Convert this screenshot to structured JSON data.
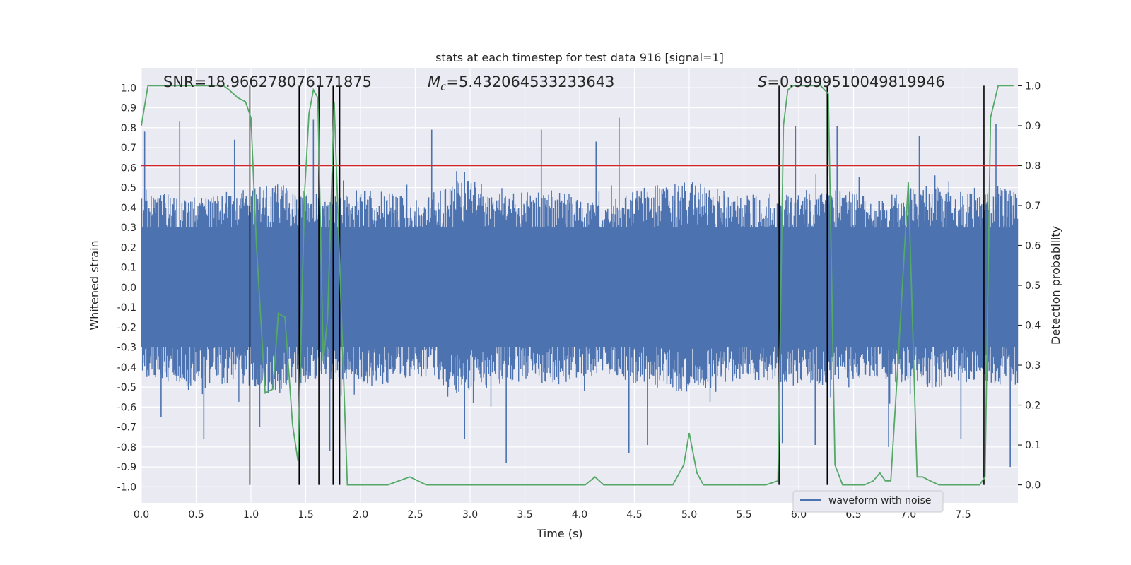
{
  "chart_data": {
    "type": "line",
    "title": "stats at each timestep for test data 916 [signal=1]",
    "xlabel": "Time (s)",
    "ylabel": "Whitened strain",
    "y2label": "Detection probability",
    "xlim": [
      0.0,
      8.0
    ],
    "ylim": [
      -1.08,
      1.1
    ],
    "y2lim": [
      -0.045,
      1.045
    ],
    "xticks": [
      "0.0",
      "0.5",
      "1.0",
      "1.5",
      "2.0",
      "2.5",
      "3.0",
      "3.5",
      "4.0",
      "4.5",
      "5.0",
      "5.5",
      "6.0",
      "6.5",
      "7.0",
      "7.5"
    ],
    "yticks": [
      "1.0",
      "0.9",
      "0.8",
      "0.7",
      "0.6",
      "0.5",
      "0.4",
      "0.3",
      "0.2",
      "0.1",
      "0.0",
      "-0.1",
      "-0.2",
      "-0.3",
      "-0.4",
      "-0.5",
      "-0.6",
      "-0.7",
      "-0.8",
      "-0.9",
      "-1.0"
    ],
    "y2ticks": [
      "1.0",
      "0.9",
      "0.8",
      "0.7",
      "0.6",
      "0.5",
      "0.4",
      "0.3",
      "0.2",
      "0.1",
      "0.0"
    ],
    "threshold": {
      "value": 0.8,
      "axis": "right",
      "color": "#d62728"
    },
    "event_markers_x": [
      0.99,
      1.44,
      1.62,
      1.75,
      1.81,
      5.82,
      6.26,
      7.69
    ],
    "annotations": {
      "snr": "SNR=18.966278076171875",
      "mc_symbol": "M",
      "mc_sub": "c",
      "mc_value": "=5.432064533233643",
      "s_symbol": "S",
      "s_value": "=0.9999510049819946"
    },
    "legend": [
      {
        "label": "waveform with noise",
        "color": "#4c72b0"
      }
    ],
    "series": [
      {
        "name": "waveform with noise",
        "axis": "left",
        "color": "#4c72b0",
        "upper_envelope": [
          0.5,
          0.45,
          0.48,
          0.52,
          0.46,
          0.5,
          0.44,
          0.55,
          0.47,
          0.49,
          0.43,
          0.51,
          0.53,
          0.46,
          0.48,
          0.5,
          0.45,
          0.52,
          0.47,
          0.5
        ],
        "lower_envelope": [
          -0.45,
          -0.5,
          -0.48,
          -0.52,
          -0.46,
          -0.5,
          -0.44,
          -0.55,
          -0.47,
          -0.49,
          -0.43,
          -0.51,
          -0.53,
          -0.46,
          -0.48,
          -0.5,
          -0.45,
          -0.52,
          -0.47,
          -0.5
        ],
        "peaks": [
          {
            "x": 0.03,
            "y": 0.78
          },
          {
            "x": 0.18,
            "y": -0.65
          },
          {
            "x": 0.35,
            "y": 0.83
          },
          {
            "x": 0.57,
            "y": -0.76
          },
          {
            "x": 0.85,
            "y": 0.74
          },
          {
            "x": 1.08,
            "y": -0.7
          },
          {
            "x": 1.57,
            "y": 0.84
          },
          {
            "x": 1.72,
            "y": -0.82
          },
          {
            "x": 2.65,
            "y": 0.79
          },
          {
            "x": 2.95,
            "y": -0.76
          },
          {
            "x": 3.33,
            "y": -0.88
          },
          {
            "x": 3.65,
            "y": 0.79
          },
          {
            "x": 4.15,
            "y": 0.73
          },
          {
            "x": 4.36,
            "y": 0.85
          },
          {
            "x": 4.45,
            "y": -0.83
          },
          {
            "x": 4.62,
            "y": -0.79
          },
          {
            "x": 5.85,
            "y": -0.78
          },
          {
            "x": 5.97,
            "y": 0.81
          },
          {
            "x": 6.15,
            "y": -0.79
          },
          {
            "x": 6.35,
            "y": 0.81
          },
          {
            "x": 6.82,
            "y": -0.8
          },
          {
            "x": 7.1,
            "y": 0.76
          },
          {
            "x": 7.48,
            "y": -0.76
          },
          {
            "x": 7.93,
            "y": -0.9
          },
          {
            "x": 7.8,
            "y": 0.82
          }
        ]
      },
      {
        "name": "Detection probability",
        "axis": "right",
        "color": "#55a868",
        "x": [
          0.0,
          0.06,
          0.2,
          0.4,
          0.6,
          0.75,
          0.8,
          0.88,
          0.95,
          1.0,
          1.05,
          1.13,
          1.2,
          1.25,
          1.31,
          1.38,
          1.43,
          1.49,
          1.53,
          1.57,
          1.61,
          1.66,
          1.7,
          1.76,
          1.82,
          1.88,
          1.93,
          2.0,
          2.15,
          2.25,
          2.35,
          2.45,
          2.6,
          2.75,
          2.9,
          3.05,
          3.2,
          3.35,
          3.5,
          3.65,
          3.8,
          3.95,
          4.05,
          4.14,
          4.22,
          4.3,
          4.42,
          4.55,
          4.7,
          4.85,
          4.95,
          5.0,
          5.07,
          5.13,
          5.25,
          5.4,
          5.55,
          5.7,
          5.81,
          5.86,
          5.9,
          5.95,
          6.05,
          6.2,
          6.27,
          6.33,
          6.4,
          6.48,
          6.6,
          6.68,
          6.74,
          6.79,
          6.84,
          6.9,
          7.0,
          7.08,
          7.13,
          7.2,
          7.28,
          7.4,
          7.55,
          7.65,
          7.7,
          7.75,
          7.82,
          7.9,
          7.96
        ],
        "y": [
          0.9,
          1.0,
          1.0,
          1.0,
          1.0,
          1.0,
          0.99,
          0.97,
          0.96,
          0.92,
          0.6,
          0.23,
          0.24,
          0.43,
          0.42,
          0.15,
          0.06,
          0.73,
          0.93,
          0.99,
          0.97,
          0.31,
          0.42,
          0.96,
          0.47,
          0.0,
          0.0,
          0.0,
          0.0,
          0.0,
          0.01,
          0.02,
          0.0,
          0.0,
          0.0,
          0.0,
          0.0,
          0.0,
          0.0,
          0.0,
          0.0,
          0.0,
          0.0,
          0.02,
          0.0,
          0.0,
          0.0,
          0.0,
          0.0,
          0.0,
          0.05,
          0.13,
          0.03,
          0.0,
          0.0,
          0.0,
          0.0,
          0.0,
          0.01,
          0.9,
          0.99,
          1.0,
          1.0,
          1.0,
          0.98,
          0.05,
          0.0,
          0.0,
          0.0,
          0.01,
          0.03,
          0.01,
          0.01,
          0.28,
          0.76,
          0.02,
          0.02,
          0.01,
          0.0,
          0.0,
          0.0,
          0.0,
          0.02,
          0.92,
          1.0,
          1.0,
          1.0
        ]
      }
    ]
  }
}
